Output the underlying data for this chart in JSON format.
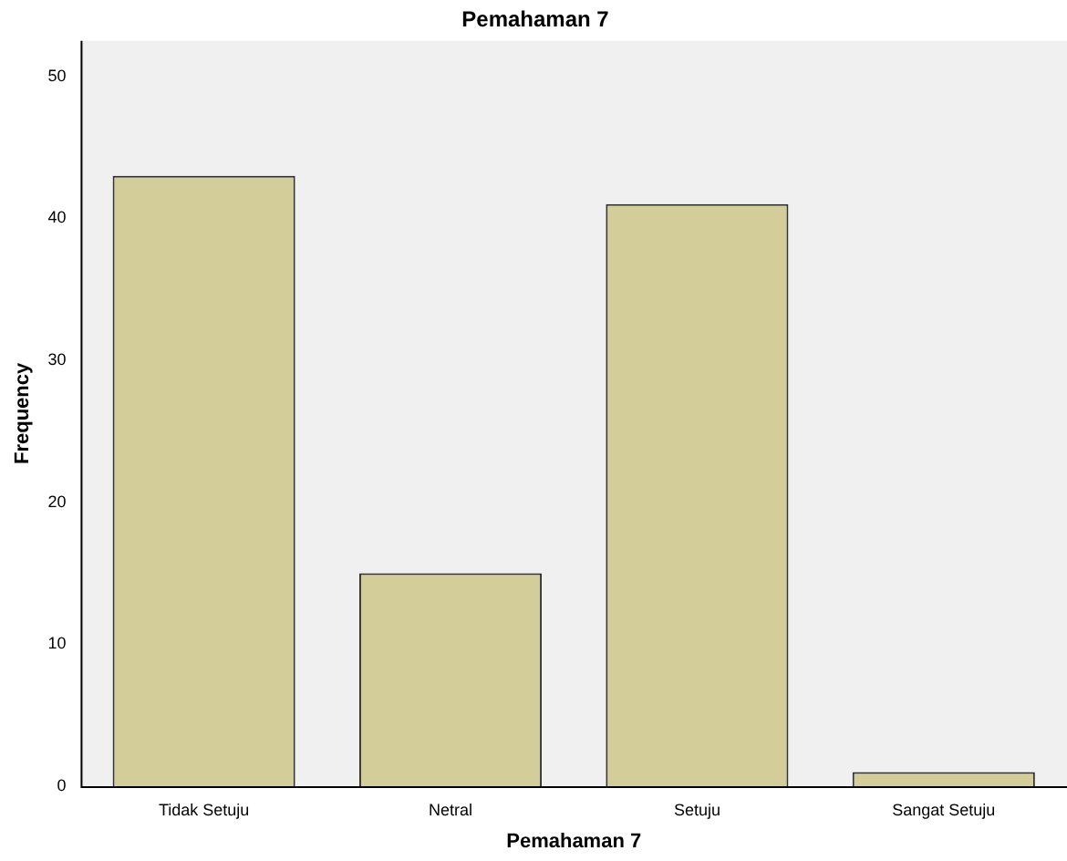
{
  "chart_data": {
    "type": "bar",
    "title": "Pemahaman 7",
    "xlabel": "Pemahaman 7",
    "ylabel": "Frequency",
    "categories": [
      "Tidak Setuju",
      "Netral",
      "Setuju",
      "Sangat Setuju"
    ],
    "values": [
      43,
      15,
      41,
      1
    ],
    "color": "#d3ce99",
    "ylim": [
      0,
      52.5
    ],
    "yticks": [
      0,
      10,
      20,
      30,
      40,
      50
    ],
    "grid": false,
    "legend": false
  }
}
